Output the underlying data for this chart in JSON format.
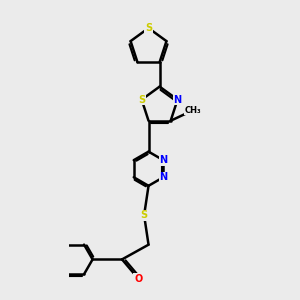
{
  "background_color": "#ebebeb",
  "bond_color": "#000000",
  "atom_colors": {
    "S": "#cccc00",
    "N": "#0000ff",
    "O": "#ff0000",
    "C": "#000000"
  },
  "bond_width": 1.8,
  "figsize": [
    3.0,
    3.0
  ],
  "dpi": 100
}
